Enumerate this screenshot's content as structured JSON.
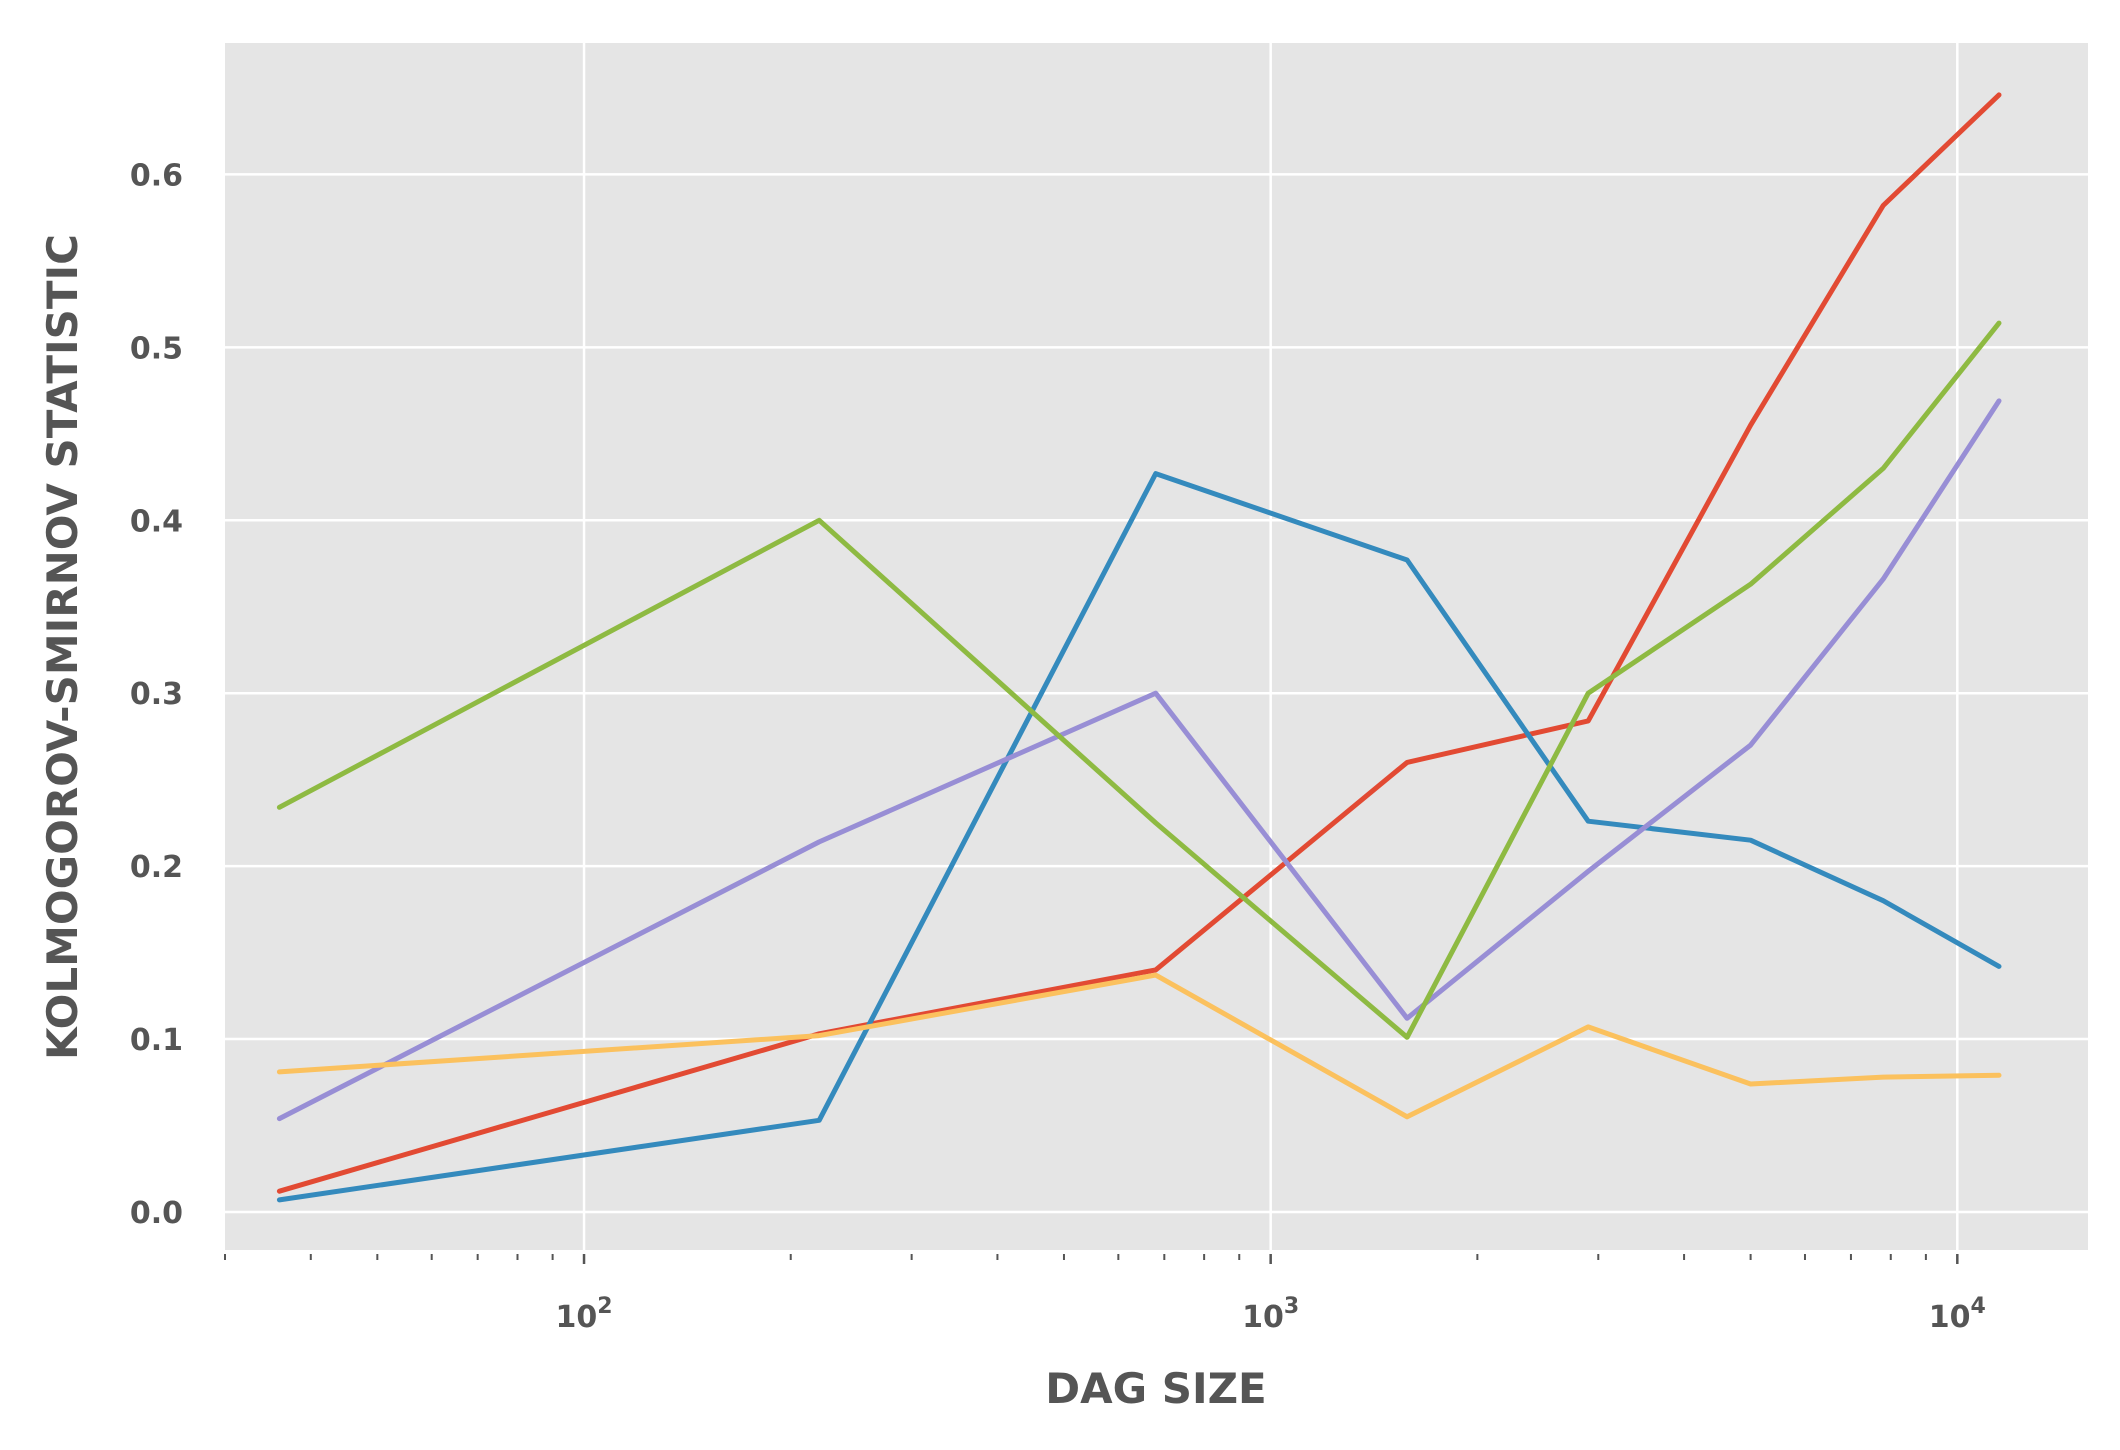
{
  "chart_data": {
    "type": "line",
    "xscale": "log",
    "xlabel": "DAG SIZE",
    "ylabel": "KOLMOGOROV-SMIRNOV STATISTIC",
    "xlim": [
      30,
      15500
    ],
    "ylim": [
      -0.022,
      0.676
    ],
    "grid": true,
    "x_ticks": [
      {
        "value": 100,
        "base": "10",
        "exp": "2"
      },
      {
        "value": 1000,
        "base": "10",
        "exp": "3"
      },
      {
        "value": 10000,
        "base": "10",
        "exp": "4"
      }
    ],
    "y_ticks": [
      {
        "value": 0.0,
        "label": "0.0"
      },
      {
        "value": 0.1,
        "label": "0.1"
      },
      {
        "value": 0.2,
        "label": "0.2"
      },
      {
        "value": 0.3,
        "label": "0.3"
      },
      {
        "value": 0.4,
        "label": "0.4"
      },
      {
        "value": 0.5,
        "label": "0.5"
      },
      {
        "value": 0.6,
        "label": "0.6"
      }
    ],
    "x": [
      36,
      220,
      680,
      1580,
      2900,
      5000,
      7800,
      11500
    ],
    "series": [
      {
        "color": "#E24A33",
        "values": [
          0.012,
          0.103,
          0.14,
          0.26,
          0.284,
          0.455,
          0.582,
          0.646
        ]
      },
      {
        "color": "#348ABD",
        "values": [
          0.007,
          0.053,
          0.427,
          0.377,
          0.226,
          0.215,
          0.18,
          0.142
        ]
      },
      {
        "color": "#988ED5",
        "values": [
          0.054,
          0.214,
          0.3,
          0.112,
          0.197,
          0.27,
          0.366,
          0.469
        ]
      },
      {
        "color": "#FBC15E",
        "values": [
          0.081,
          0.102,
          0.137,
          0.055,
          0.107,
          0.074,
          0.078,
          0.079
        ]
      },
      {
        "color": "#8EBA42",
        "values": [
          0.234,
          0.4,
          0.225,
          0.101,
          0.3,
          0.363,
          0.43,
          0.514
        ]
      }
    ]
  }
}
